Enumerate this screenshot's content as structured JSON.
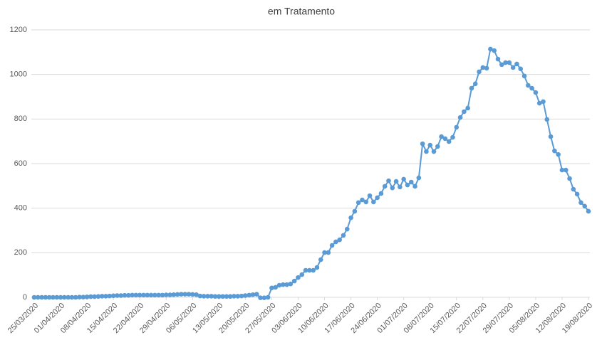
{
  "chart_data": {
    "type": "line",
    "title": "em Tratamento",
    "categories": [
      "25/03/2020",
      null,
      null,
      null,
      null,
      null,
      null,
      "01/04/2020",
      null,
      null,
      null,
      null,
      null,
      null,
      "08/04/2020",
      null,
      null,
      null,
      null,
      null,
      null,
      "15/04/2020",
      null,
      null,
      null,
      null,
      null,
      null,
      "22/04/2020",
      null,
      null,
      null,
      null,
      null,
      null,
      "29/04/2020",
      null,
      null,
      null,
      null,
      null,
      null,
      "06/05/2020",
      null,
      null,
      null,
      null,
      null,
      null,
      "13/05/2020",
      null,
      null,
      null,
      null,
      null,
      null,
      "20/05/2020",
      null,
      null,
      null,
      null,
      null,
      null,
      "27/05/2020",
      null,
      null,
      null,
      null,
      null,
      null,
      "03/06/2020",
      null,
      null,
      null,
      null,
      null,
      null,
      "10/06/2020",
      null,
      null,
      null,
      null,
      null,
      null,
      "17/06/2020",
      null,
      null,
      null,
      null,
      null,
      null,
      "24/06/2020",
      null,
      null,
      null,
      null,
      null,
      null,
      "01/07/2020",
      null,
      null,
      null,
      null,
      null,
      null,
      "08/07/2020",
      null,
      null,
      null,
      null,
      null,
      null,
      "15/07/2020",
      null,
      null,
      null,
      null,
      null,
      null,
      "22/07/2020",
      null,
      null,
      null,
      null,
      null,
      null,
      "29/07/2020",
      null,
      null,
      null,
      null,
      null,
      null,
      "05/08/2020",
      null,
      null,
      null,
      null,
      null,
      null,
      "12/08/2020",
      null,
      null,
      null,
      null,
      null,
      null,
      "19/08/2020"
    ],
    "series": [
      {
        "name": "em Tratamento",
        "color": "#5b9bd5",
        "values": [
          0,
          0,
          0,
          0,
          0,
          0,
          0,
          0,
          0,
          0,
          0,
          0,
          1,
          1,
          2,
          3,
          3,
          4,
          5,
          5,
          6,
          7,
          8,
          8,
          9,
          9,
          10,
          10,
          10,
          10,
          10,
          10,
          10,
          10,
          10,
          11,
          11,
          12,
          13,
          14,
          14,
          14,
          13,
          12,
          6,
          5,
          5,
          5,
          4,
          4,
          4,
          4,
          4,
          5,
          5,
          6,
          8,
          10,
          12,
          14,
          -2,
          -2,
          0,
          42,
          45,
          54,
          57,
          57,
          60,
          73,
          89,
          102,
          121,
          121,
          121,
          134,
          169,
          201,
          201,
          233,
          249,
          258,
          278,
          306,
          357,
          386,
          425,
          437,
          428,
          456,
          428,
          447,
          466,
          498,
          523,
          491,
          520,
          495,
          530,
          504,
          517,
          498,
          536,
          689,
          654,
          683,
          654,
          677,
          721,
          712,
          699,
          718,
          763,
          807,
          833,
          849,
          938,
          958,
          1012,
          1031,
          1028,
          1114,
          1107,
          1069,
          1044,
          1053,
          1053,
          1031,
          1047,
          1025,
          993,
          951,
          938,
          919,
          871,
          878,
          798,
          721,
          657,
          641,
          571,
          571,
          533,
          485,
          463,
          425,
          409,
          386
        ]
      }
    ],
    "ylim": [
      0,
      1200
    ],
    "yticks": [
      0,
      200,
      400,
      600,
      800,
      1000,
      1200
    ],
    "grid": true
  }
}
